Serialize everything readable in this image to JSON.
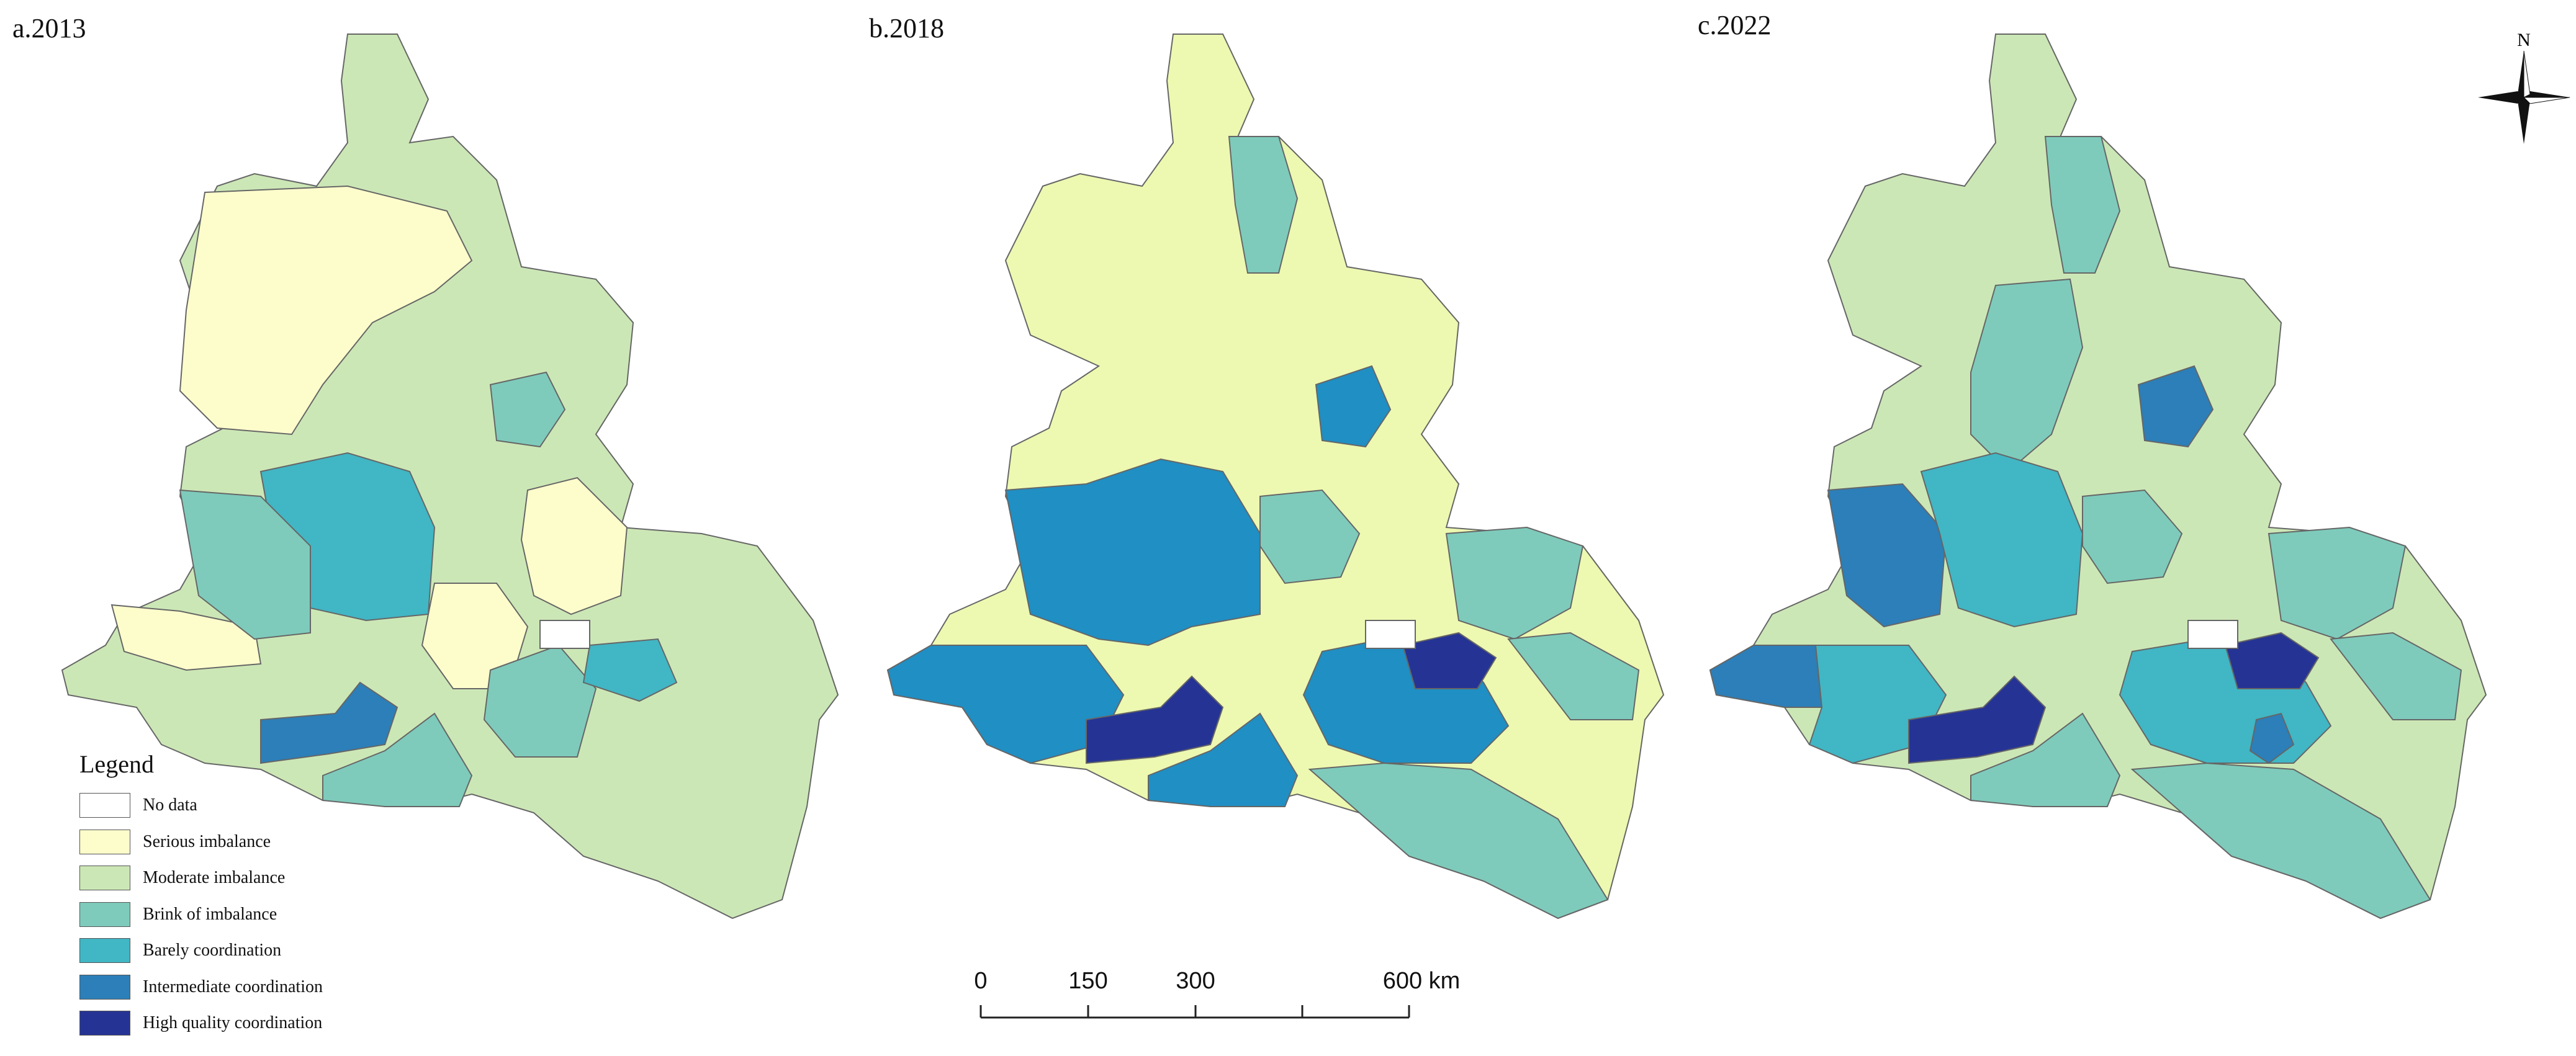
{
  "panels": [
    {
      "label": "a.2013"
    },
    {
      "label": "b.2018"
    },
    {
      "label": "c.2022"
    }
  ],
  "legend": {
    "title": "Legend",
    "items": [
      {
        "label": "No data",
        "color": "#ffffff"
      },
      {
        "label": "Serious imbalance",
        "color": "#fdfdcc"
      },
      {
        "label": "Moderate imbalance",
        "color": "#cce7b6"
      },
      {
        "label": "Brink of imbalance",
        "color": "#7ecbbb"
      },
      {
        "label": "Barely coordination",
        "color": "#41b6c4"
      },
      {
        "label": "Intermediate coordination",
        "color": "#2c7fb8"
      },
      {
        "label": "High quality coordination",
        "color": "#253494"
      }
    ]
  },
  "scale_bar": {
    "ticks": [
      "0",
      "150",
      "300",
      "600 km"
    ]
  },
  "north_arrow": {
    "label": "N"
  }
}
